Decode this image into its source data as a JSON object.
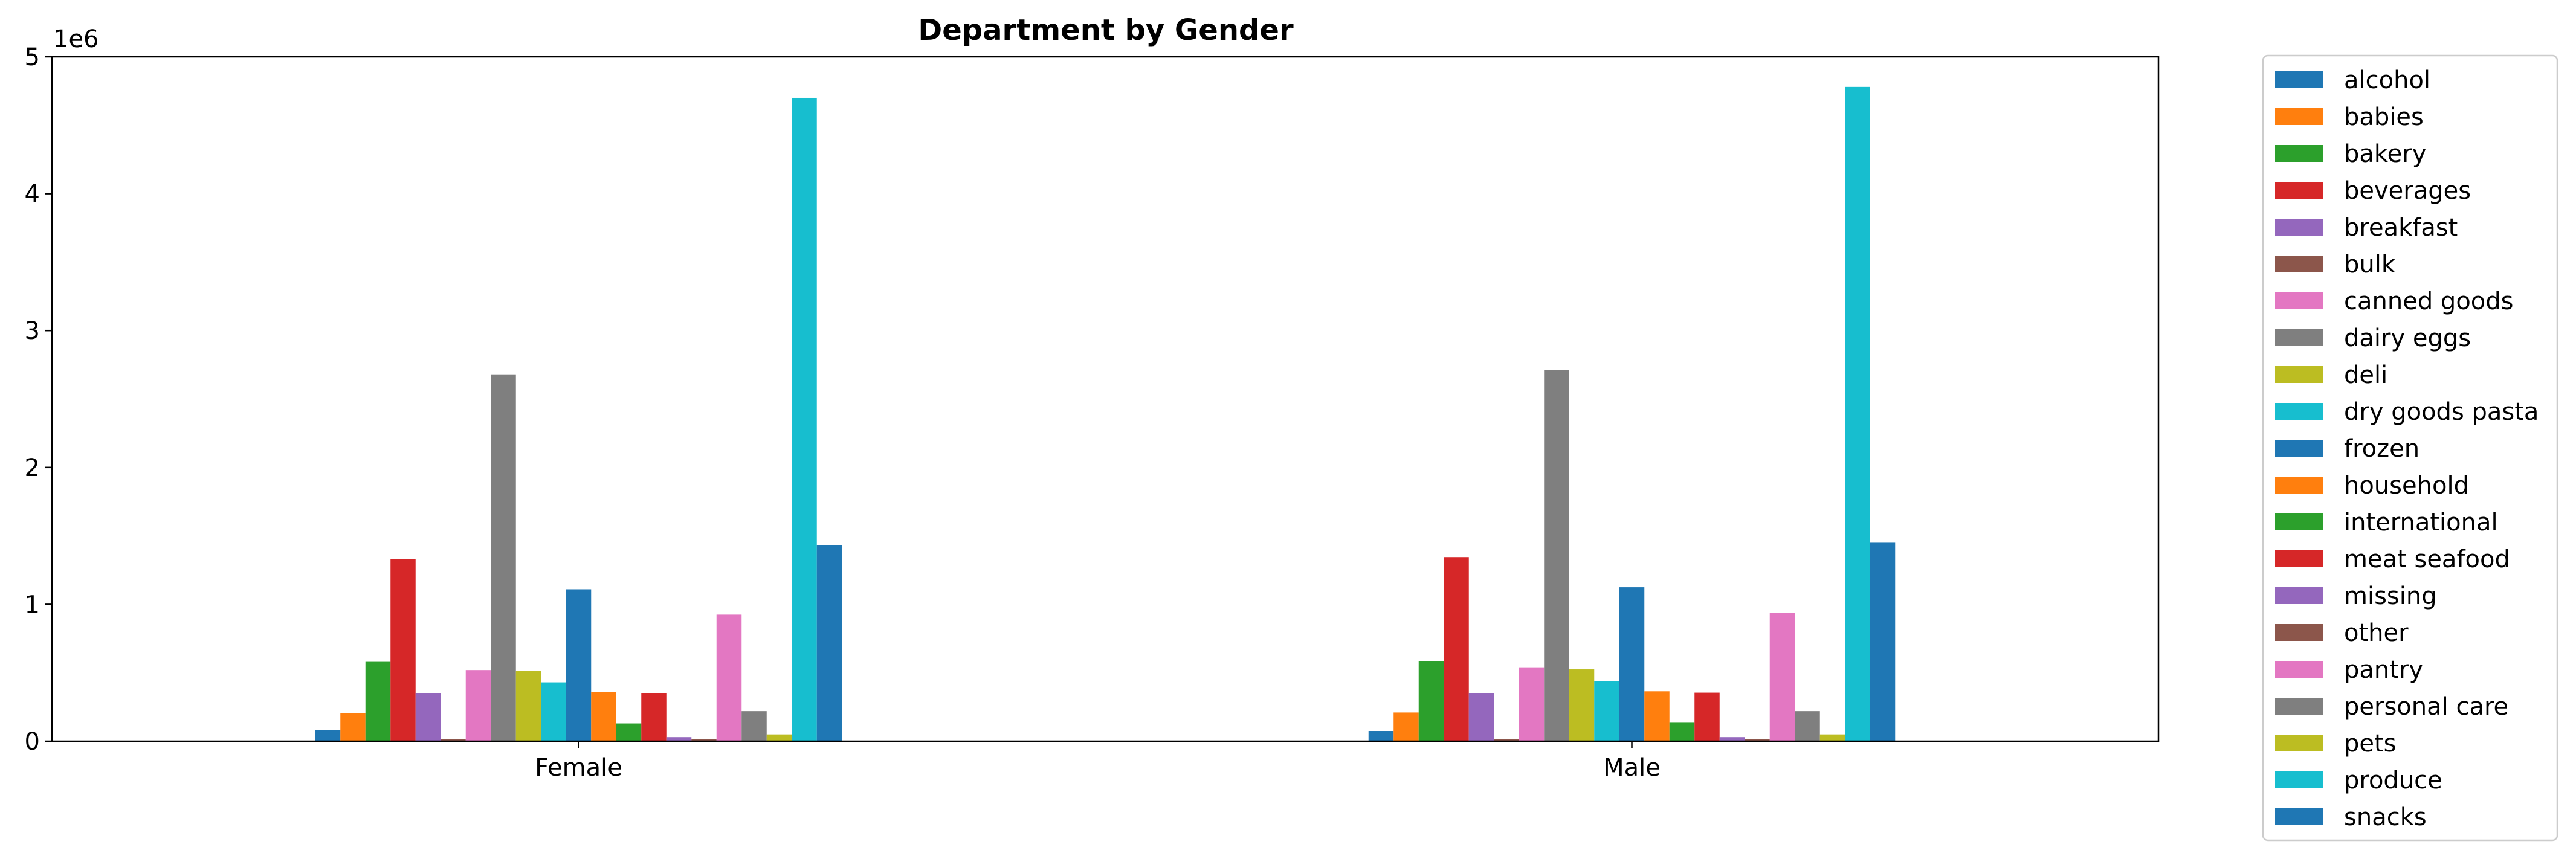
{
  "chart_data": {
    "type": "bar",
    "title": "Department by Gender",
    "xlabel": "",
    "ylabel": "",
    "y_multiplier_label": "1e6",
    "categories": [
      "Female",
      "Male"
    ],
    "ylim": [
      0,
      5000000
    ],
    "yticks": [
      0,
      1000000,
      2000000,
      3000000,
      4000000,
      5000000
    ],
    "ytick_labels": [
      "0",
      "1",
      "2",
      "3",
      "4",
      "5"
    ],
    "grid": false,
    "legend_placement": "outside-right",
    "series": [
      {
        "name": "alcohol",
        "color": "#1f77b4",
        "values": [
          80000,
          75000
        ]
      },
      {
        "name": "babies",
        "color": "#ff7f0e",
        "values": [
          205000,
          210000
        ]
      },
      {
        "name": "bakery",
        "color": "#2ca02c",
        "values": [
          580000,
          585000
        ]
      },
      {
        "name": "beverages",
        "color": "#d62728",
        "values": [
          1330000,
          1345000
        ]
      },
      {
        "name": "breakfast",
        "color": "#9467bd",
        "values": [
          350000,
          350000
        ]
      },
      {
        "name": "bulk",
        "color": "#8c564b",
        "values": [
          15000,
          15000
        ]
      },
      {
        "name": "canned goods",
        "color": "#e377c2",
        "values": [
          520000,
          540000
        ]
      },
      {
        "name": "dairy eggs",
        "color": "#7f7f7f",
        "values": [
          2680000,
          2710000
        ]
      },
      {
        "name": "deli",
        "color": "#bcbd22",
        "values": [
          515000,
          525000
        ]
      },
      {
        "name": "dry goods pasta",
        "color": "#17becf",
        "values": [
          430000,
          440000
        ]
      },
      {
        "name": "frozen",
        "color": "#1f77b4",
        "values": [
          1110000,
          1125000
        ]
      },
      {
        "name": "household",
        "color": "#ff7f0e",
        "values": [
          360000,
          365000
        ]
      },
      {
        "name": "international",
        "color": "#2ca02c",
        "values": [
          130000,
          135000
        ]
      },
      {
        "name": "meat seafood",
        "color": "#d62728",
        "values": [
          350000,
          355000
        ]
      },
      {
        "name": "missing",
        "color": "#9467bd",
        "values": [
          30000,
          30000
        ]
      },
      {
        "name": "other",
        "color": "#8c564b",
        "values": [
          15000,
          15000
        ]
      },
      {
        "name": "pantry",
        "color": "#e377c2",
        "values": [
          925000,
          940000
        ]
      },
      {
        "name": "personal care",
        "color": "#7f7f7f",
        "values": [
          220000,
          220000
        ]
      },
      {
        "name": "pets",
        "color": "#bcbd22",
        "values": [
          50000,
          50000
        ]
      },
      {
        "name": "produce",
        "color": "#17becf",
        "values": [
          4700000,
          4780000
        ]
      },
      {
        "name": "snacks",
        "color": "#1f77b4",
        "values": [
          1430000,
          1450000
        ]
      }
    ]
  }
}
